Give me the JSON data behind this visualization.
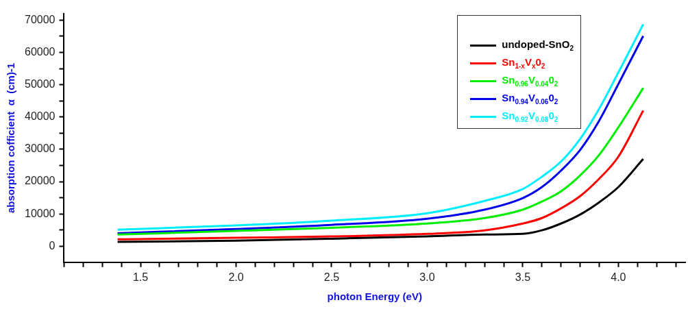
{
  "chart_data": {
    "type": "line",
    "xlabel": "photon Energy (eV)",
    "ylabel": "absorption cofficient  α  (cm)-1",
    "x": [
      1.38,
      2.0,
      2.5,
      3.0,
      3.3,
      3.5,
      3.6,
      3.7,
      3.8,
      3.9,
      4.0,
      4.13
    ],
    "series": [
      {
        "name": "undoped-SnO$_{2}$",
        "color": "#000000",
        "values": [
          1300,
          1700,
          2300,
          3000,
          3600,
          3800,
          4900,
          7000,
          9800,
          13600,
          18300,
          27000
        ]
      },
      {
        "name": "Sn$_{1-x}$V$_{x}$0$_{2}$",
        "color": "#ff0000",
        "values": [
          2100,
          2600,
          3000,
          3800,
          4900,
          7000,
          8700,
          11700,
          15500,
          20900,
          27700,
          42000
        ]
      },
      {
        "name": "Sn$_{0.96}$V$_{0.04}$0$_{2}$",
        "color": "#00ee00",
        "values": [
          3600,
          4700,
          5700,
          7000,
          8700,
          11300,
          13800,
          17000,
          21900,
          28300,
          36800,
          49000
        ]
      },
      {
        "name": "Sn$_{0.94}$V$_{0.06}$0$_{2}$",
        "color": "#0000ee",
        "values": [
          4000,
          5300,
          6600,
          8500,
          11300,
          14900,
          18300,
          23400,
          29800,
          38900,
          50200,
          65100
        ]
      },
      {
        "name": "Sn$_{0.92}$V$_{0.08}$0$_{2}$",
        "color": "#00eeff",
        "values": [
          5100,
          6400,
          7900,
          10200,
          14000,
          17700,
          21500,
          26200,
          33200,
          42600,
          53800,
          68700
        ]
      }
    ],
    "xlim": [
      1.1,
      4.35
    ],
    "xticks": [
      {
        "value": 1.1,
        "label": null
      },
      {
        "value": 1.2,
        "label": null
      },
      {
        "value": 1.3,
        "label": null
      },
      {
        "value": 1.4,
        "label": null
      },
      {
        "value": 1.5,
        "label": "1.5"
      },
      {
        "value": 1.6,
        "label": null
      },
      {
        "value": 1.7,
        "label": null
      },
      {
        "value": 1.8,
        "label": null
      },
      {
        "value": 1.9,
        "label": null
      },
      {
        "value": 2.0,
        "label": "2.0"
      },
      {
        "value": 2.1,
        "label": null
      },
      {
        "value": 2.2,
        "label": null
      },
      {
        "value": 2.3,
        "label": null
      },
      {
        "value": 2.4,
        "label": null
      },
      {
        "value": 2.5,
        "label": "2.5"
      },
      {
        "value": 2.6,
        "label": null
      },
      {
        "value": 2.7,
        "label": null
      },
      {
        "value": 2.8,
        "label": null
      },
      {
        "value": 2.9,
        "label": null
      },
      {
        "value": 3.0,
        "label": "3.0"
      },
      {
        "value": 3.1,
        "label": null
      },
      {
        "value": 3.2,
        "label": null
      },
      {
        "value": 3.3,
        "label": null
      },
      {
        "value": 3.4,
        "label": null
      },
      {
        "value": 3.5,
        "label": "3.5"
      },
      {
        "value": 3.6,
        "label": null
      },
      {
        "value": 3.7,
        "label": null
      },
      {
        "value": 3.8,
        "label": null
      },
      {
        "value": 3.9,
        "label": null
      },
      {
        "value": 4.0,
        "label": "4.0"
      },
      {
        "value": 4.1,
        "label": null
      },
      {
        "value": 4.2,
        "label": null
      },
      {
        "value": 4.3,
        "label": null
      }
    ],
    "ylim": [
      -5000,
      72000
    ],
    "yticks": [
      0,
      {
        "value": 5000,
        "label": null
      },
      10000,
      {
        "value": 15000,
        "label": null
      },
      20000,
      {
        "value": 25000,
        "label": null
      },
      30000,
      {
        "value": 35000,
        "label": null
      },
      40000,
      {
        "value": 45000,
        "label": null
      },
      50000,
      {
        "value": 55000,
        "label": null
      },
      60000,
      {
        "value": 65000,
        "label": null
      },
      70000
    ],
    "grid": false,
    "legend": "top right",
    "marker": "none",
    "line_style": "solid"
  }
}
